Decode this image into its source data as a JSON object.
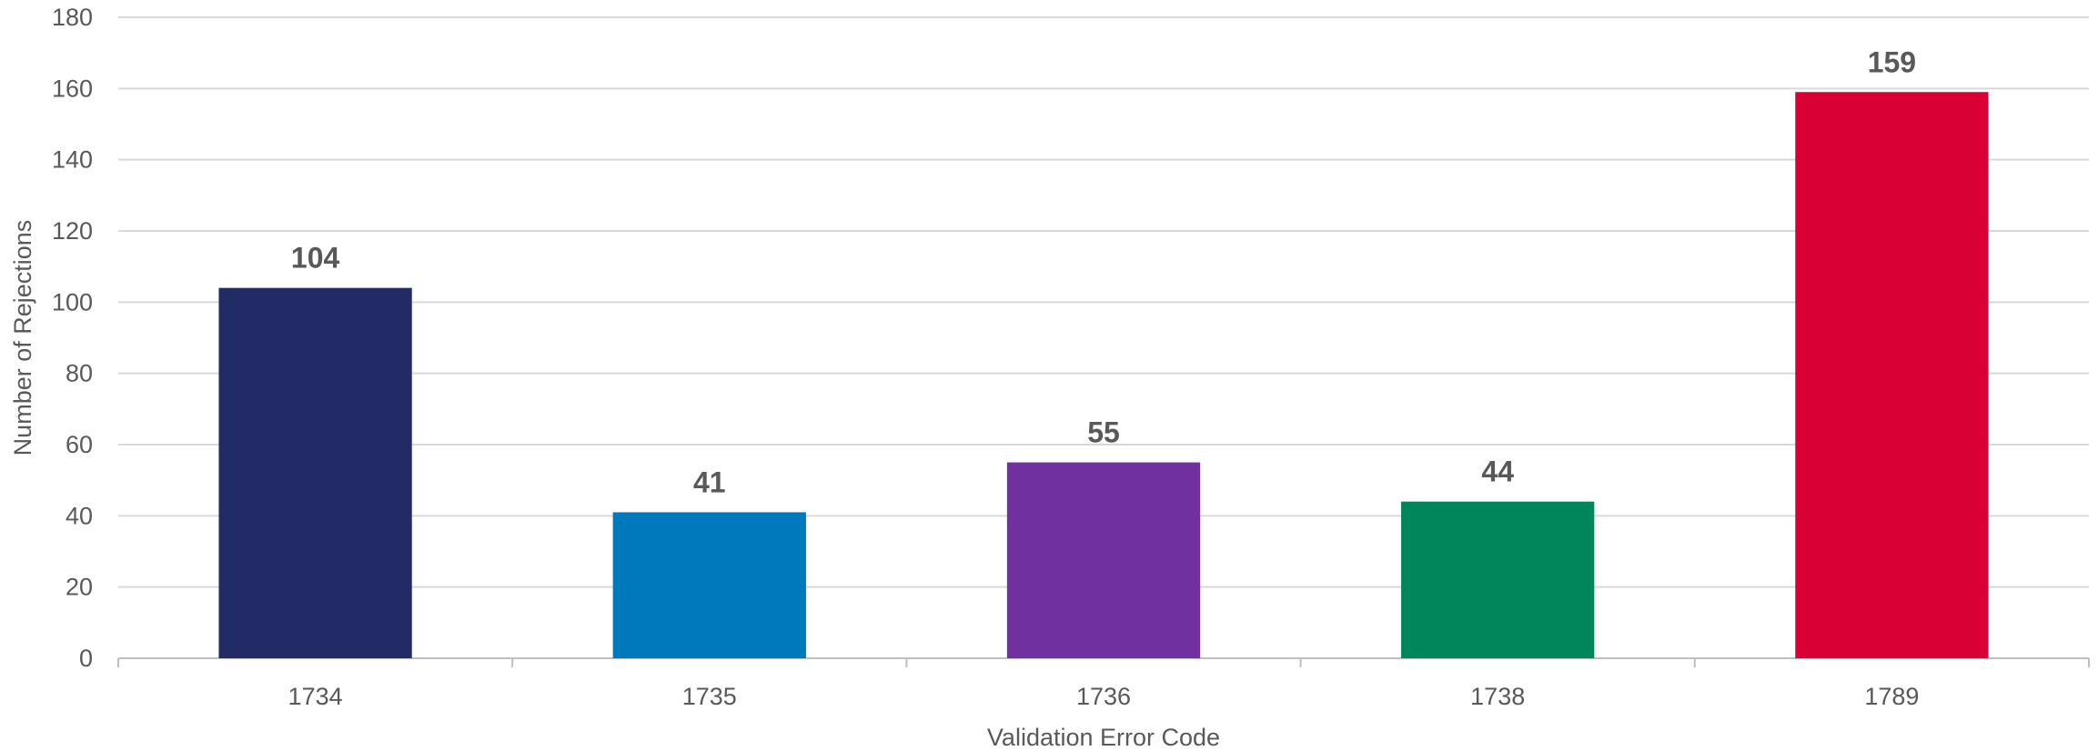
{
  "chart_data": {
    "type": "bar",
    "title": "",
    "xlabel": "Validation Error Code",
    "ylabel": "Number of Rejections",
    "categories": [
      "1734",
      "1735",
      "1736",
      "1738",
      "1789"
    ],
    "values": [
      104,
      41,
      55,
      44,
      159
    ],
    "colors": [
      "#232B66",
      "#0079BC",
      "#7030A0",
      "#00865A",
      "#D90036"
    ],
    "ylim": [
      0,
      180
    ],
    "yticks": [
      0,
      20,
      40,
      60,
      80,
      100,
      120,
      140,
      160,
      180
    ],
    "grid": true,
    "data_labels": true
  }
}
